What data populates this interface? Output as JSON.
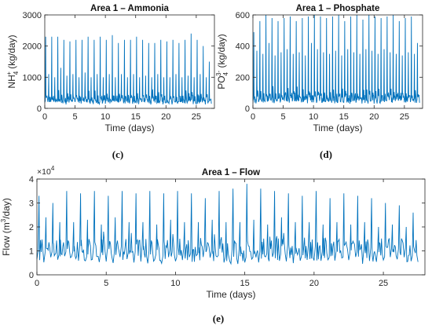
{
  "figure": {
    "captions": {
      "c": "(c)",
      "d": "(d)",
      "e": "(e)"
    }
  },
  "colors": {
    "series": "#0072BD",
    "axes": "#262626",
    "background": "#ffffff"
  },
  "chart_data": [
    {
      "id": "c",
      "type": "line",
      "title": "Area 1 – Ammonia",
      "xlabel": "Time (days)",
      "ylabel_parts": [
        "NH",
        "4",
        "+",
        " (kg/day)"
      ],
      "xlim": [
        0,
        28
      ],
      "ylim": [
        0,
        3000
      ],
      "xticks": [
        0,
        5,
        10,
        15,
        20,
        25
      ],
      "yticks": [
        0,
        1000,
        2000,
        3000
      ],
      "ytick_labels": [
        "0",
        "1000",
        "2000",
        "3000"
      ],
      "grid": false,
      "series": [
        {
          "baseline": 250,
          "peak_spacing_days": 0.5,
          "peaks": [
            2300,
            1100,
            2300,
            1000,
            2300,
            1300,
            2200,
            1050,
            2150,
            1100,
            2200,
            1000,
            2200,
            1150,
            2300,
            1000,
            2200,
            1100,
            2300,
            1000,
            2200,
            1100,
            2350,
            1000,
            2100,
            1100,
            2200,
            1000,
            2200,
            1100,
            2300,
            1000,
            2200,
            1050,
            2100,
            1000,
            2100,
            1100,
            2200,
            1000,
            2150,
            1000,
            2200,
            1100,
            2100,
            1000,
            2200,
            1050,
            2400,
            1000,
            2200,
            1100,
            2000,
            1000,
            1500
          ]
        }
      ]
    },
    {
      "id": "d",
      "type": "line",
      "title": "Area 1 – Phosphate",
      "xlabel": "Time (days)",
      "ylabel_parts": [
        "PO",
        "4",
        "3-",
        " (kg/day)"
      ],
      "xlim": [
        0,
        28
      ],
      "ylim": [
        0,
        600
      ],
      "xticks": [
        0,
        5,
        10,
        15,
        20,
        25
      ],
      "yticks": [
        0,
        200,
        400,
        600
      ],
      "ytick_labels": [
        "0",
        "200",
        "400",
        "600"
      ],
      "grid": false,
      "series": [
        {
          "baseline": 60,
          "peak_spacing_days": 0.5,
          "peaks": [
            490,
            370,
            560,
            350,
            600,
            420,
            580,
            340,
            560,
            360,
            580,
            380,
            590,
            350,
            560,
            360,
            580,
            340,
            590,
            420,
            600,
            380,
            590,
            360,
            580,
            350,
            590,
            370,
            600,
            340,
            560,
            380,
            590,
            360,
            600,
            350,
            570,
            380,
            600,
            370,
            590,
            350,
            580,
            380,
            590,
            360,
            600,
            350,
            560,
            340,
            580,
            360,
            590,
            350,
            420
          ]
        }
      ]
    },
    {
      "id": "e",
      "type": "line",
      "title": "Area 1 – Flow",
      "xlabel": "Time (days)",
      "ylabel_parts": [
        "Flow (m",
        "3",
        "/day)"
      ],
      "exponent_label": [
        "×10",
        "4"
      ],
      "xlim": [
        0,
        28
      ],
      "ylim": [
        0,
        4
      ],
      "xticks": [
        0,
        5,
        10,
        15,
        20,
        25
      ],
      "yticks": [
        0,
        1,
        2,
        3,
        4
      ],
      "ytick_labels": [
        "0",
        "1",
        "2",
        "3",
        "4"
      ],
      "grid": false,
      "series": [
        {
          "baseline": 0.9,
          "peak_spacing_days": 0.5,
          "peaks": [
            3.3,
            2.4,
            3.0,
            2.2,
            3.5,
            2.2,
            3.4,
            2.3,
            3.5,
            2.1,
            3.3,
            2.4,
            3.5,
            2.2,
            3.4,
            2.2,
            3.5,
            2.1,
            3.4,
            2.3,
            3.5,
            2.2,
            3.4,
            2.2,
            3.2,
            2.3,
            3.5,
            2.2,
            3.6,
            2.2,
            3.8,
            2.3,
            3.6,
            2.1,
            3.5,
            2.4,
            3.4,
            2.2,
            3.3,
            2.2,
            3.5,
            2.1,
            3.2,
            2.2,
            3.4,
            2.1,
            3.3,
            2.2,
            3.2,
            2.0,
            3.0,
            2.1,
            2.9,
            2.0,
            2.6
          ]
        }
      ]
    }
  ]
}
